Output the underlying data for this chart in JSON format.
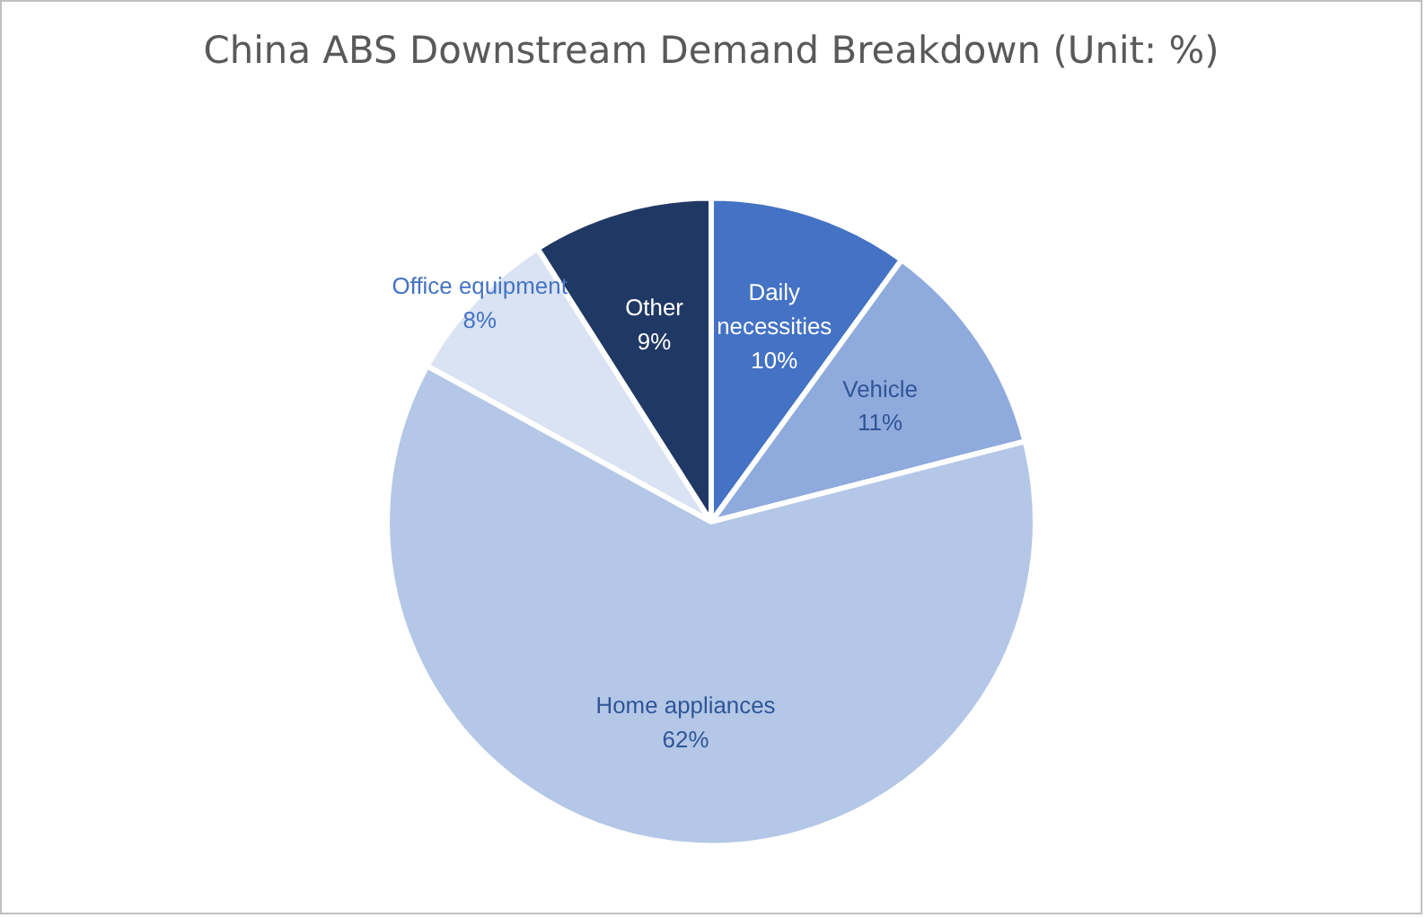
{
  "chart_data": {
    "type": "pie",
    "title": "China ABS Downstream Demand Breakdown (Unit: %)",
    "categories": [
      "Daily necessities",
      "Vehicle",
      "Home appliances",
      "Office equipment",
      "Other"
    ],
    "values": [
      10,
      11,
      62,
      8,
      9
    ],
    "colors": [
      "#4472c4",
      "#8faadc",
      "#b4c7e7",
      "#dae3f3",
      "#203864"
    ],
    "value_labels": [
      "10%",
      "11%",
      "62%",
      "8%",
      "9%"
    ],
    "legend": false
  }
}
